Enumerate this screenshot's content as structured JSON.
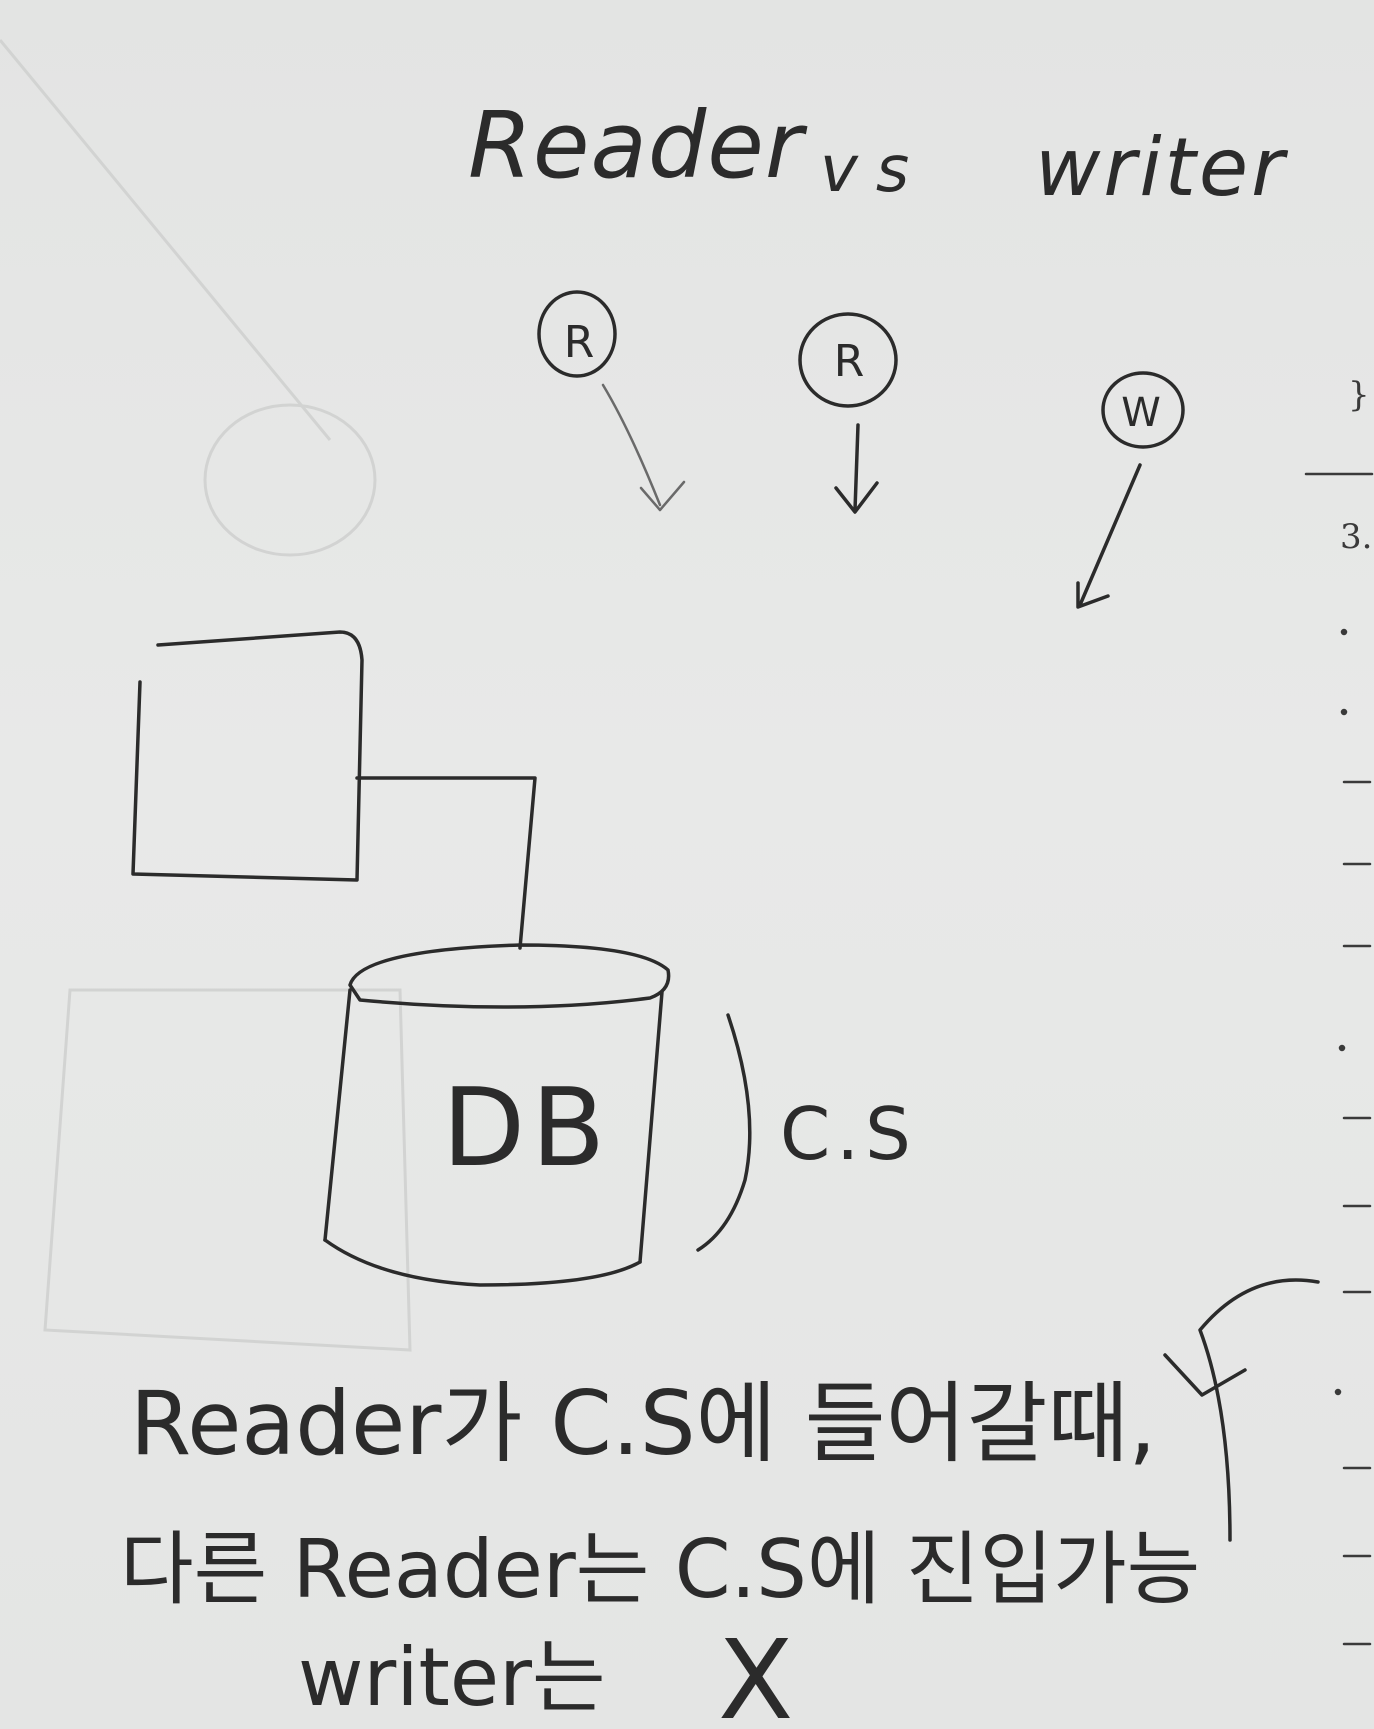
{
  "title": {
    "reader": "Reader",
    "vs": "vs",
    "writer": "writer"
  },
  "nodes": [
    {
      "id": "r1",
      "letter": "R"
    },
    {
      "id": "r2",
      "letter": "R"
    },
    {
      "id": "w",
      "letter": "W"
    }
  ],
  "diagram": {
    "db_label": "DB",
    "cs_label": "C.S"
  },
  "note": {
    "line1": "Reader가 C.S에 들어갈때,",
    "line2": "다른 Reader는 C.S에 진입가능",
    "line3": "writer는",
    "line3_mark": "X"
  },
  "margin": {
    "brace": "}",
    "number": "3."
  },
  "colors": {
    "paper": "#e6e7e6",
    "ink": "#2b2b2b",
    "faint_ink": "#cfd0cf"
  }
}
